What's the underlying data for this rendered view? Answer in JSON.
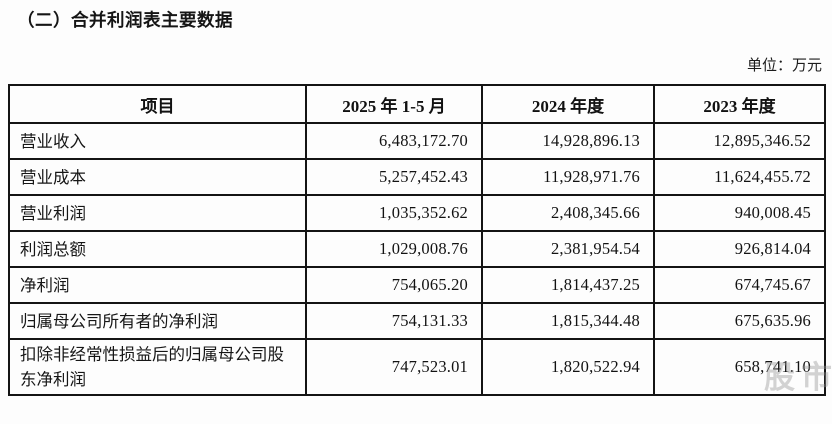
{
  "title": "（二）合并利润表主要数据",
  "unit_label": "单位：万元",
  "watermark_text": "股市",
  "colors": {
    "background": "#fdfdfd",
    "border": "#141414",
    "text": "#1a1a1a",
    "watermark": "#969696"
  },
  "table": {
    "headers": [
      "项目",
      "2025 年 1-5 月",
      "2024 年度",
      "2023 年度"
    ],
    "rows": [
      {
        "label": "营业收入",
        "v2025": "6,483,172.70",
        "v2024": "14,928,896.13",
        "v2023": "12,895,346.52"
      },
      {
        "label": "营业成本",
        "v2025": "5,257,452.43",
        "v2024": "11,928,971.76",
        "v2023": "11,624,455.72"
      },
      {
        "label": "营业利润",
        "v2025": "1,035,352.62",
        "v2024": "2,408,345.66",
        "v2023": "940,008.45"
      },
      {
        "label": "利润总额",
        "v2025": "1,029,008.76",
        "v2024": "2,381,954.54",
        "v2023": "926,814.04"
      },
      {
        "label": "净利润",
        "v2025": "754,065.20",
        "v2024": "1,814,437.25",
        "v2023": "674,745.67"
      },
      {
        "label": "归属母公司所有者的净利润",
        "v2025": "754,131.33",
        "v2024": "1,815,344.48",
        "v2023": "675,635.96"
      },
      {
        "label": "扣除非经常性损益后的归属母公司股东净利润",
        "v2025": "747,523.01",
        "v2024": "1,820,522.94",
        "v2023": "658,741.10"
      }
    ]
  }
}
